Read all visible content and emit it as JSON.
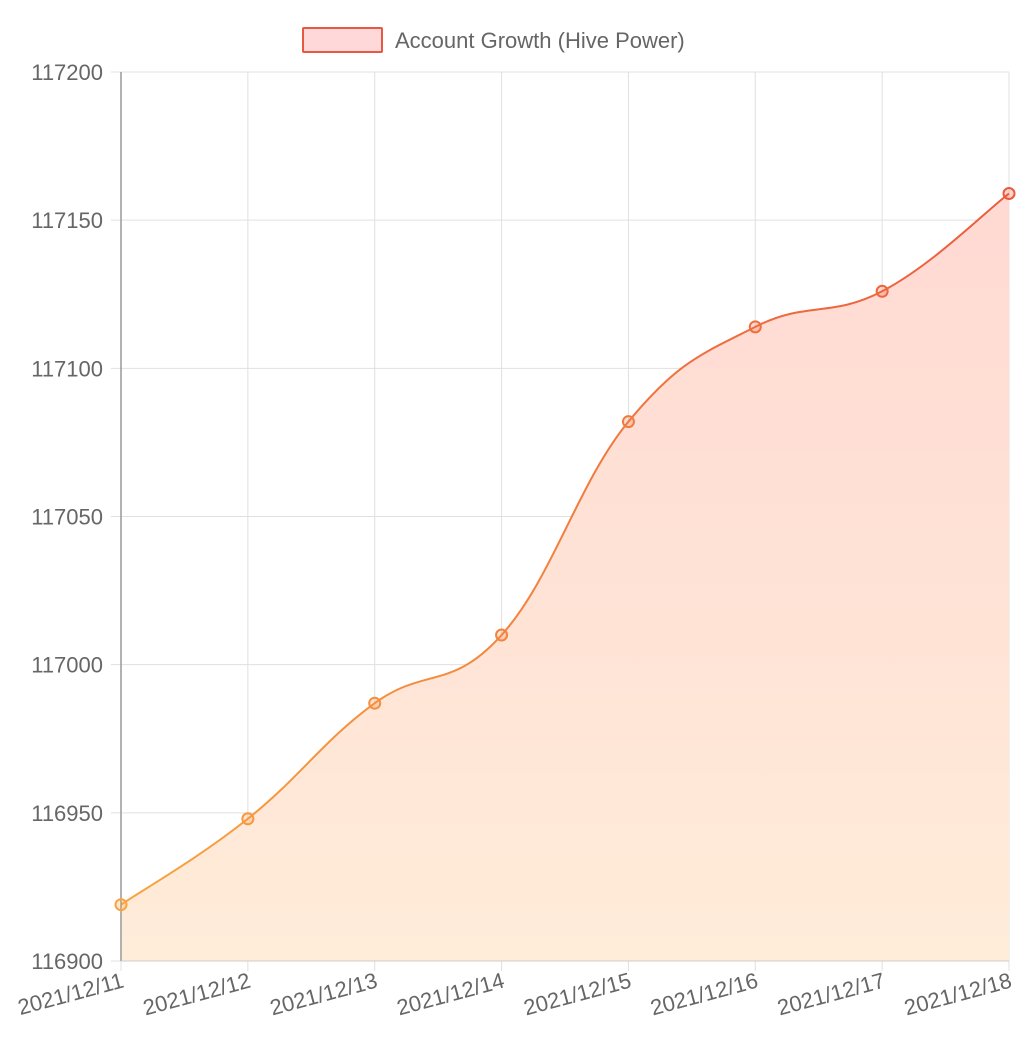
{
  "chart_data": {
    "type": "area",
    "title": "",
    "xlabel": "",
    "ylabel": "",
    "legend": {
      "position": "top",
      "entries": [
        "Account Growth (Hive Power)"
      ]
    },
    "x": [
      "2021/12/11",
      "2021/12/12",
      "2021/12/13",
      "2021/12/14",
      "2021/12/15",
      "2021/12/16",
      "2021/12/17",
      "2021/12/18"
    ],
    "y_ticks": [
      "116900",
      "116950",
      "117000",
      "117050",
      "117100",
      "117150",
      "117200"
    ],
    "ylim": [
      116900,
      117200
    ],
    "grid": true,
    "series": [
      {
        "name": "Account Growth (Hive Power)",
        "values": [
          116919,
          116948,
          116987,
          117010,
          117082,
          117114,
          117126,
          117159
        ]
      }
    ],
    "colors": {
      "line_start": "#f7a440",
      "line_end": "#ec5a3e",
      "fill_top": "#ffd9d3",
      "fill_bottom": "#ffecd9",
      "legend_fill": "#ffd9d9",
      "legend_stroke": "#e8573f",
      "grid": "#e0e0e0",
      "axis": "#999999"
    }
  }
}
